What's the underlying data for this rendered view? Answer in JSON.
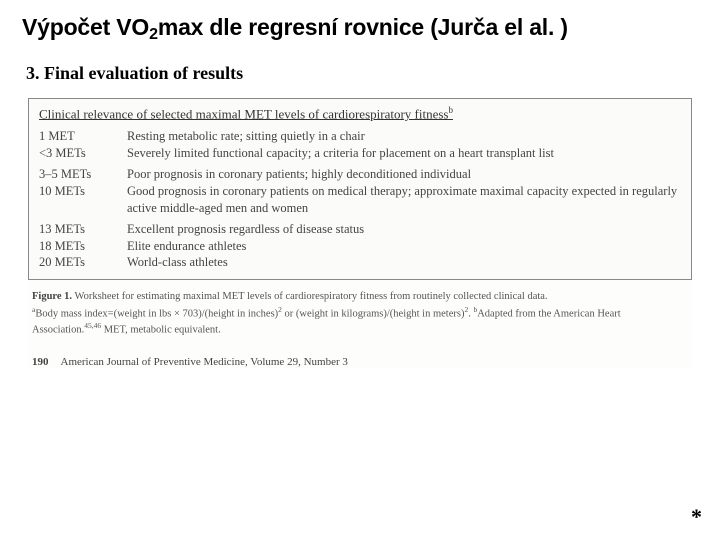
{
  "title_pre": "Výpočet VO",
  "title_sub": "2",
  "title_post": "max dle regresní rovnice (Jurča el al. )",
  "section_heading": "3. Final evaluation of results",
  "table": {
    "title_main": "Clinical relevance of selected maximal MET levels of cardiorespiratory fitness",
    "title_sup": "b",
    "rows": [
      {
        "level": "1 MET",
        "desc": "Resting metabolic rate; sitting quietly in a chair"
      },
      {
        "level": "<3 METs",
        "desc": "Severely limited functional capacity; a criteria for placement on a heart transplant list"
      },
      {
        "level": "3–5 METs",
        "desc": "Poor prognosis in coronary patients; highly deconditioned individual",
        "sep": true
      },
      {
        "level": "10 METs",
        "desc": "Good prognosis in coronary patients on medical therapy; approximate maximal capacity expected in regularly active middle-aged men and women"
      },
      {
        "level": "13 METs",
        "desc": "Excellent prognosis regardless of disease status",
        "sep": true
      },
      {
        "level": "18 METs",
        "desc": "Elite endurance athletes"
      },
      {
        "level": "20 METs",
        "desc": "World-class athletes"
      }
    ]
  },
  "caption": {
    "strong": "Figure 1.",
    "text1": " Worksheet for estimating maximal MET levels of cardiorespiratory fitness from routinely collected clinical data.",
    "sup_a": "a",
    "text2": "Body mass index=(weight in lbs × 703)/(height in inches)",
    "sq": "2",
    "text3": " or (weight in kilograms)/(height in meters)",
    "text4": ". ",
    "sup_b": "b",
    "text5": "Adapted from the American Heart Association.",
    "refs": "45,46",
    "text6": " MET, metabolic equivalent."
  },
  "journal": {
    "page": "190",
    "text": "American Journal of Preventive Medicine, Volume 29, Number 3"
  },
  "asterisk": "*"
}
